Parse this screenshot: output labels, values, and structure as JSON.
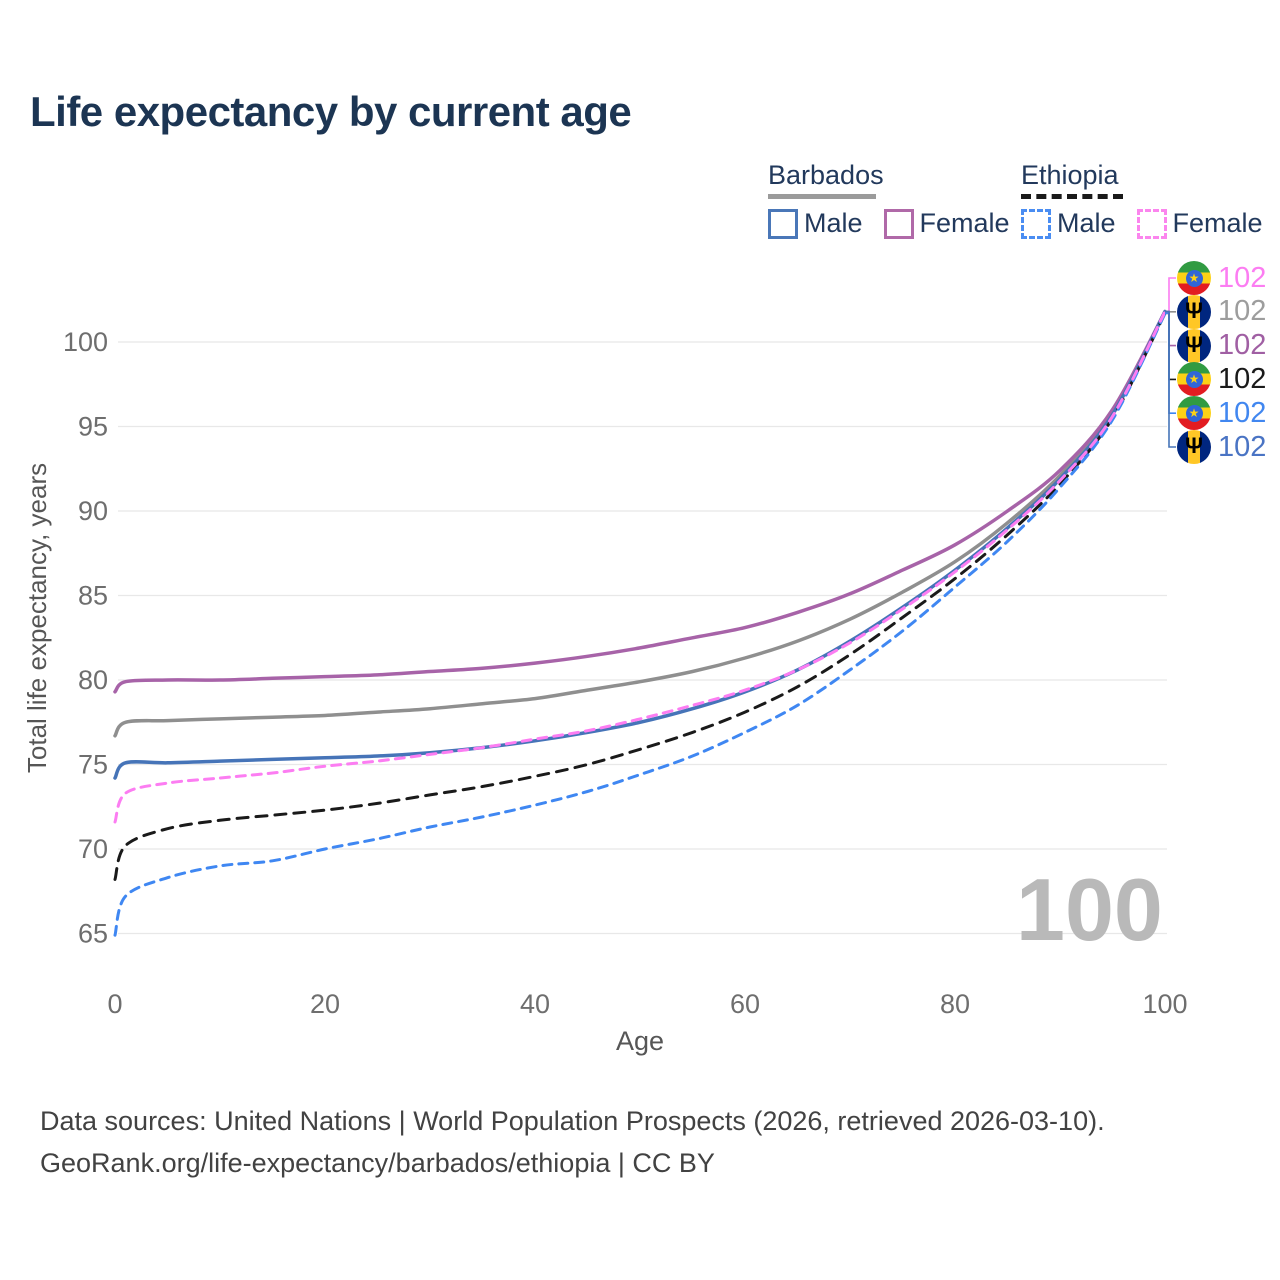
{
  "title": "Life expectancy by current age",
  "watermark": "100",
  "legend": {
    "groups": [
      {
        "country": "Barbados",
        "line_style": "solid",
        "underline_color": "#9b9b9b",
        "items": [
          {
            "label": "Male",
            "color": "#4a77b8",
            "dashed": false
          },
          {
            "label": "Female",
            "color": "#b069a8",
            "dashed": false
          }
        ]
      },
      {
        "country": "Ethiopia",
        "line_style": "dashed",
        "underline_color": "#1a1a1a",
        "items": [
          {
            "label": "Male",
            "color": "#4a8df2",
            "dashed": true
          },
          {
            "label": "Female",
            "color": "#fb85ee",
            "dashed": true
          }
        ]
      }
    ]
  },
  "chart_data": {
    "type": "line",
    "title": "Life expectancy by current age",
    "xlabel": "Age",
    "ylabel": "Total life expectancy, years",
    "xticks": [
      0,
      20,
      40,
      60,
      80,
      100
    ],
    "yticks": [
      65,
      70,
      75,
      80,
      85,
      90,
      95,
      100
    ],
    "xlim": [
      0,
      100
    ],
    "ylim": [
      63.5,
      102.5
    ],
    "grid": true,
    "legend_position": "top-right",
    "x": [
      0,
      1,
      5,
      10,
      15,
      20,
      25,
      30,
      35,
      40,
      45,
      50,
      55,
      60,
      65,
      70,
      75,
      80,
      85,
      90,
      95,
      100
    ],
    "series": [
      {
        "id": "barbados-both",
        "name": "Barbados Both sexes",
        "country": "Barbados",
        "sex": "Both",
        "color": "#8f8f8f",
        "dashed": false,
        "values": [
          76.7,
          77.5,
          77.6,
          77.7,
          77.8,
          77.9,
          78.1,
          78.3,
          78.6,
          78.9,
          79.4,
          79.9,
          80.5,
          81.3,
          82.3,
          83.6,
          85.2,
          87.0,
          89.3,
          92.1,
          95.8,
          101.8
        ]
      },
      {
        "id": "barbados-female",
        "name": "Barbados Female",
        "country": "Barbados",
        "sex": "Female",
        "color": "#a763a8",
        "dashed": false,
        "values": [
          79.3,
          79.9,
          80.0,
          80.0,
          80.1,
          80.2,
          80.3,
          80.5,
          80.7,
          81.0,
          81.4,
          81.9,
          82.5,
          83.1,
          84.0,
          85.1,
          86.5,
          88.0,
          90.0,
          92.4,
          96.0,
          101.8
        ]
      },
      {
        "id": "barbados-male",
        "name": "Barbados Male",
        "country": "Barbados",
        "sex": "Male",
        "color": "#4674b8",
        "dashed": false,
        "values": [
          74.2,
          75.1,
          75.1,
          75.2,
          75.3,
          75.4,
          75.5,
          75.7,
          76.0,
          76.4,
          76.9,
          77.5,
          78.3,
          79.3,
          80.6,
          82.3,
          84.3,
          86.5,
          89.0,
          91.9,
          95.7,
          101.8
        ]
      },
      {
        "id": "ethiopia-both",
        "name": "Ethiopia Both sexes",
        "country": "Ethiopia",
        "sex": "Both",
        "color": "#1a1a1a",
        "dashed": true,
        "values": [
          68.2,
          70.2,
          71.2,
          71.7,
          72.0,
          72.3,
          72.7,
          73.2,
          73.7,
          74.3,
          75.0,
          75.9,
          76.9,
          78.1,
          79.6,
          81.5,
          83.7,
          86.0,
          88.6,
          91.6,
          95.5,
          101.7
        ]
      },
      {
        "id": "ethiopia-male",
        "name": "Ethiopia Male",
        "country": "Ethiopia",
        "sex": "Male",
        "color": "#3f87f2",
        "dashed": true,
        "values": [
          64.9,
          67.2,
          68.3,
          69.0,
          69.3,
          70.0,
          70.6,
          71.3,
          71.9,
          72.6,
          73.4,
          74.4,
          75.5,
          76.9,
          78.5,
          80.6,
          82.9,
          85.5,
          88.2,
          91.4,
          95.4,
          101.7
        ]
      },
      {
        "id": "ethiopia-female",
        "name": "Ethiopia Female",
        "country": "Ethiopia",
        "sex": "Female",
        "color": "#fc7df2",
        "dashed": true,
        "values": [
          71.6,
          73.3,
          73.9,
          74.2,
          74.5,
          74.9,
          75.2,
          75.6,
          76.0,
          76.5,
          77.0,
          77.7,
          78.5,
          79.4,
          80.6,
          82.2,
          84.2,
          86.4,
          88.9,
          91.8,
          95.6,
          101.8
        ]
      }
    ],
    "end_labels": [
      {
        "series": "ethiopia-female",
        "flag": "ethiopia",
        "value": "102",
        "label_color": "#fc7df2"
      },
      {
        "series": "barbados-both",
        "flag": "barbados",
        "value": "102",
        "label_color": "#9d9d9d"
      },
      {
        "series": "barbados-female",
        "flag": "barbados",
        "value": "102",
        "label_color": "#a05fa3"
      },
      {
        "series": "ethiopia-both",
        "flag": "ethiopia",
        "value": "102",
        "label_color": "#1a1a1a"
      },
      {
        "series": "ethiopia-male",
        "flag": "ethiopia",
        "value": "102",
        "label_color": "#4187f0"
      },
      {
        "series": "barbados-male",
        "flag": "barbados",
        "value": "102",
        "label_color": "#4a74c4"
      }
    ]
  },
  "footer": {
    "line1": "Data sources: United Nations | World Population Prospects (2026, retrieved 2026-03-10).",
    "line2": "GeoRank.org/life-expectancy/barbados/ethiopia | CC BY"
  },
  "colors": {
    "title": "#1c3553",
    "grid": "#e8e8e8",
    "tick_label": "#6e6e6e",
    "axis_title": "#565656",
    "watermark": "#b9b9b9",
    "footer": "#424242"
  }
}
